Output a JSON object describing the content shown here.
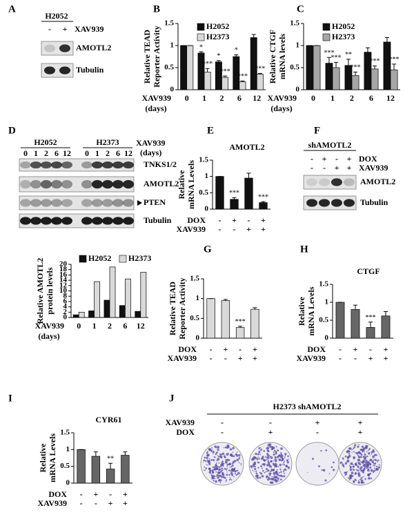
{
  "panel_labels": [
    "A",
    "B",
    "C",
    "D",
    "E",
    "F",
    "G",
    "H",
    "I",
    "J"
  ],
  "blot_a": {
    "cell_line": "H2052",
    "treatment": {
      "name": "XAV939",
      "values": [
        "-",
        "+"
      ]
    },
    "bands": [
      "AMOTL2",
      "Tubulin"
    ]
  },
  "blot_d": {
    "groups": [
      "H2052",
      "H2373"
    ],
    "lanes": [
      "0",
      "1",
      "2",
      "6",
      "12",
      "0",
      "1",
      "2",
      "6",
      "12"
    ],
    "lane_title": "XAV939",
    "lane_unit": "(days)",
    "bands": [
      "TNKS1/2",
      "AMOTL2",
      "PTEN",
      "Tubulin"
    ]
  },
  "blot_f": {
    "title": "shAMOTL2",
    "conditions": [
      {
        "name": "DOX",
        "values": [
          "-",
          "+",
          "-",
          "+"
        ]
      },
      {
        "name": "XAV939",
        "values": [
          "-",
          "-",
          "+",
          "+"
        ]
      }
    ],
    "bands": [
      "AMOTL2",
      "Tubulin"
    ]
  },
  "colony_j": {
    "title": "H2373 shAMOTL2",
    "conditions": [
      {
        "name": "XAV939",
        "values": [
          "-",
          "-",
          "+",
          "+"
        ]
      },
      {
        "name": "DOX",
        "values": [
          "-",
          "+",
          "-",
          "+"
        ]
      }
    ]
  },
  "chart_data": [
    {
      "type": "bar",
      "ylabel": [
        "Relative TEAD",
        "Reporter Activity"
      ],
      "xlabel": "XAV939",
      "xunit": "(days)",
      "categories": [
        "0",
        "1",
        "2",
        "6",
        "12"
      ],
      "ylim": [
        0,
        1.5
      ],
      "yticks": [
        0,
        0.5,
        1,
        1.5
      ],
      "legend": "top-left",
      "series": [
        {
          "name": "H2052",
          "color": "#111111",
          "values": [
            1,
            0.83,
            0.63,
            0.75,
            1.18
          ],
          "errors": [
            0,
            0.03,
            0.03,
            0.04,
            0.07
          ],
          "stars": [
            null,
            "*",
            "*",
            "*",
            null
          ]
        },
        {
          "name": "H2373",
          "color": "#d9d9d9",
          "values": [
            1,
            0.4,
            0.28,
            0.18,
            0.35
          ],
          "errors": [
            0,
            0.08,
            0.03,
            0.02,
            0.02
          ],
          "stars": [
            null,
            "***",
            "***",
            "***",
            "***"
          ]
        }
      ]
    },
    {
      "type": "bar",
      "ylabel": [
        "Relative CTGF",
        "mRNA levels"
      ],
      "xlabel": "XAV939",
      "xunit": "(days)",
      "categories": [
        "0",
        "1",
        "2",
        "6",
        "12"
      ],
      "ylim": [
        0,
        1.5
      ],
      "yticks": [
        0,
        0.5,
        1,
        1.5
      ],
      "legend": "top-left",
      "series": [
        {
          "name": "H2052",
          "color": "#111111",
          "values": [
            1,
            0.6,
            0.55,
            0.85,
            1.08
          ],
          "errors": [
            0,
            0.13,
            0.14,
            0.1,
            0.1
          ],
          "stars": [
            null,
            "***",
            "**",
            null,
            null
          ]
        },
        {
          "name": "H2373",
          "color": "#a6a6a6",
          "values": [
            1,
            0.5,
            0.32,
            0.47,
            0.45
          ],
          "errors": [
            0,
            0.12,
            0.08,
            0.07,
            0.13
          ],
          "stars": [
            null,
            "***",
            "***",
            "***",
            "***"
          ]
        }
      ]
    },
    {
      "type": "bar",
      "ylabel": [
        "Relative AMOTL2",
        "protein levels"
      ],
      "xlabel": "XAV939",
      "xunit": "(days)",
      "categories": [
        "0",
        "1",
        "2",
        "6",
        "12"
      ],
      "ylim": [
        0,
        20
      ],
      "yticks": [
        0,
        2,
        4,
        6,
        8,
        10,
        12,
        14,
        16,
        18,
        20
      ],
      "legend": "above",
      "series": [
        {
          "name": "H2052",
          "color": "#111111",
          "values": [
            1,
            2.5,
            6.5,
            4.5,
            2.3
          ]
        },
        {
          "name": "H2373",
          "color": "#d9d9d9",
          "values": [
            2,
            13.5,
            19,
            14.5,
            17
          ]
        }
      ]
    },
    {
      "type": "bar",
      "title": "AMOTL2",
      "ylabel": [
        "Relative",
        "mRNA Levels"
      ],
      "ylim": [
        0,
        1.5
      ],
      "yticks": [
        0,
        0.5,
        1,
        1.5
      ],
      "conditions": [
        {
          "name": "DOX",
          "values": [
            "-",
            "+",
            "-",
            "+"
          ]
        },
        {
          "name": "XAV939",
          "values": [
            "-",
            "-",
            "+",
            "+"
          ]
        }
      ],
      "series": [
        {
          "color": "#111111",
          "values": [
            1,
            0.3,
            0.95,
            0.2
          ],
          "errors": [
            0,
            0.05,
            0.15,
            0.03
          ],
          "stars": [
            null,
            "***",
            null,
            "***"
          ]
        }
      ]
    },
    {
      "type": "bar",
      "ylabel": [
        "Relative TEAD",
        "Reporter Activity"
      ],
      "ylim": [
        0,
        1.5
      ],
      "yticks": [
        0,
        0.5,
        1,
        1.5
      ],
      "conditions": [
        {
          "name": "DOX",
          "values": [
            "-",
            "+",
            "-",
            "+"
          ]
        },
        {
          "name": "XAV939",
          "values": [
            "-",
            "-",
            "+",
            "+"
          ]
        }
      ],
      "series": [
        {
          "color": "#d9d9d9",
          "values": [
            1,
            0.95,
            0.27,
            0.73
          ],
          "errors": [
            0,
            0.03,
            0.03,
            0.04
          ],
          "stars": [
            null,
            null,
            "***",
            null
          ]
        }
      ]
    },
    {
      "type": "bar",
      "title": "CTGF",
      "ylabel": [
        "Relative",
        "mRNA Levels"
      ],
      "ylim": [
        0,
        1.5
      ],
      "yticks": [
        0,
        0.5,
        1,
        1.5
      ],
      "conditions": [
        {
          "name": "DOX",
          "values": [
            "-",
            "+",
            "-",
            "+"
          ]
        },
        {
          "name": "XAV939",
          "values": [
            "-",
            "-",
            "+",
            "+"
          ]
        }
      ],
      "series": [
        {
          "color": "#666666",
          "values": [
            1,
            0.8,
            0.3,
            0.62
          ],
          "errors": [
            0,
            0.12,
            0.15,
            0.12
          ],
          "stars": [
            null,
            null,
            "***",
            null
          ]
        }
      ]
    },
    {
      "type": "bar",
      "title": "CYR61",
      "ylabel": [
        "Relative",
        "mRNA Levels"
      ],
      "ylim": [
        0,
        1.5
      ],
      "yticks": [
        0,
        0.5,
        1,
        1.5
      ],
      "conditions": [
        {
          "name": "DOX",
          "values": [
            "-",
            "+",
            "-",
            "+"
          ]
        },
        {
          "name": "XAV939",
          "values": [
            "-",
            "-",
            "+",
            "+"
          ]
        }
      ],
      "series": [
        {
          "color": "#666666",
          "values": [
            1,
            0.8,
            0.42,
            0.83
          ],
          "errors": [
            0,
            0.13,
            0.17,
            0.1
          ],
          "stars": [
            null,
            null,
            "**",
            null
          ]
        }
      ]
    }
  ]
}
